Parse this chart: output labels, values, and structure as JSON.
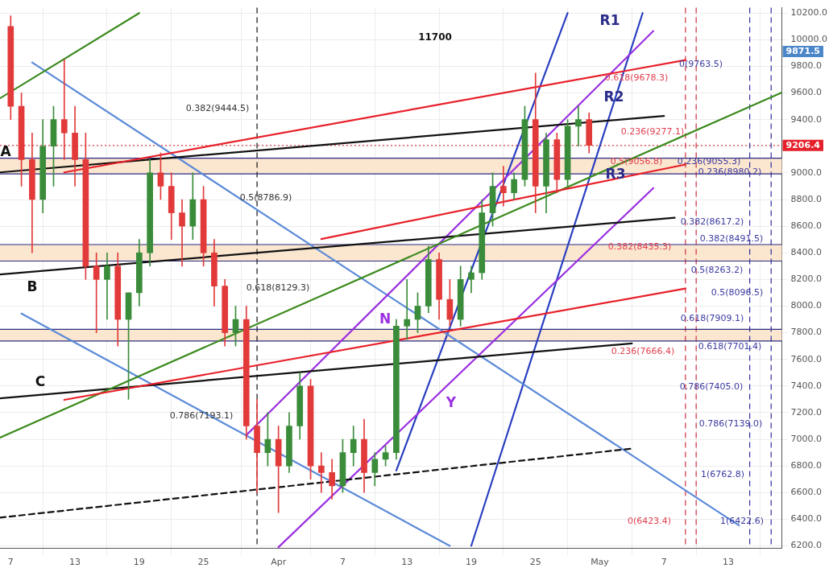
{
  "chart_data": {
    "type": "candlestick",
    "x": [
      "--03-07",
      "--03-08",
      "--03-09",
      "--03-10",
      "--03-11",
      "--03-12",
      "--03-13",
      "--03-14",
      "--03-15",
      "--03-16",
      "--03-17",
      "--03-18",
      "--03-19",
      "--03-20",
      "--03-21",
      "--03-22",
      "--03-23",
      "--03-24",
      "--03-25",
      "--03-26",
      "--03-27",
      "--03-28",
      "--03-29",
      "--03-30",
      "--03-31",
      "--04-01",
      "--04-02",
      "--04-03",
      "--04-04",
      "--04-05",
      "--04-06",
      "--04-07",
      "--04-08",
      "--04-09",
      "--04-10",
      "--04-11",
      "--04-12",
      "--04-13",
      "--04-14",
      "--04-15",
      "--04-16",
      "--04-17",
      "--04-18",
      "--04-19",
      "--04-20",
      "--04-21",
      "--04-22",
      "--04-23",
      "--04-24",
      "--04-25",
      "--04-26",
      "--04-27",
      "--04-28",
      "--04-29",
      "--04-30"
    ],
    "ohlc": [
      [
        10100,
        10180,
        9400,
        9500
      ],
      [
        9500,
        9600,
        8900,
        9100
      ],
      [
        9100,
        9300,
        8400,
        8800
      ],
      [
        8800,
        9400,
        8700,
        9200
      ],
      [
        9200,
        9500,
        8900,
        9400
      ],
      [
        9400,
        9850,
        9100,
        9300
      ],
      [
        9300,
        9500,
        8900,
        9100
      ],
      [
        9100,
        9300,
        8200,
        8300
      ],
      [
        8300,
        8400,
        7800,
        8200
      ],
      [
        8200,
        8400,
        7900,
        8300
      ],
      [
        8300,
        8400,
        7700,
        7900
      ],
      [
        7900,
        8100,
        7300,
        8100
      ],
      [
        8100,
        8500,
        8000,
        8400
      ],
      [
        8400,
        9100,
        8300,
        9000
      ],
      [
        9000,
        9150,
        8800,
        8900
      ],
      [
        8900,
        9000,
        8500,
        8700
      ],
      [
        8700,
        8800,
        8300,
        8600
      ],
      [
        8600,
        9000,
        8500,
        8800
      ],
      [
        8800,
        8900,
        8300,
        8400
      ],
      [
        8400,
        8500,
        8000,
        8150
      ],
      [
        8150,
        8200,
        7700,
        7800
      ],
      [
        7800,
        8000,
        7700,
        7900
      ],
      [
        7900,
        8000,
        7000,
        7100
      ],
      [
        7100,
        7300,
        6600,
        6900
      ],
      [
        6900,
        7200,
        6800,
        7000
      ],
      [
        7000,
        7100,
        6450,
        6800
      ],
      [
        6800,
        7200,
        6750,
        7100
      ],
      [
        7100,
        7500,
        7000,
        7400
      ],
      [
        7400,
        7450,
        6700,
        6800
      ],
      [
        6800,
        6900,
        6600,
        6750
      ],
      [
        6750,
        6850,
        6550,
        6650
      ],
      [
        6650,
        7000,
        6600,
        6900
      ],
      [
        6900,
        7100,
        6800,
        7000
      ],
      [
        7000,
        7150,
        6600,
        6750
      ],
      [
        6750,
        6900,
        6650,
        6850
      ],
      [
        6850,
        6950,
        6800,
        6900
      ],
      [
        6900,
        7900,
        6850,
        7850
      ],
      [
        7850,
        8200,
        7750,
        7900
      ],
      [
        7900,
        8100,
        7800,
        8000
      ],
      [
        8000,
        8450,
        7950,
        8350
      ],
      [
        8350,
        8400,
        7900,
        8050
      ],
      [
        8050,
        8200,
        7850,
        7900
      ],
      [
        7900,
        8300,
        7850,
        8200
      ],
      [
        8200,
        8300,
        8100,
        8250
      ],
      [
        8250,
        8800,
        8200,
        8700
      ],
      [
        8700,
        9000,
        8600,
        8900
      ],
      [
        8900,
        9050,
        8750,
        8850
      ],
      [
        8850,
        9000,
        8800,
        8950
      ],
      [
        8950,
        9500,
        8900,
        9400
      ],
      [
        9400,
        9750,
        8700,
        8900
      ],
      [
        8900,
        9300,
        8700,
        9250
      ],
      [
        9250,
        9300,
        8850,
        8950
      ],
      [
        8950,
        9400,
        8900,
        9350
      ],
      [
        9350,
        9500,
        9200,
        9400
      ],
      [
        9400,
        9450,
        9150,
        9206.4
      ]
    ],
    "colors": [
      "#e23a3a",
      "#e23a3a",
      "#e23a3a",
      "#3a8c3a",
      "#3a8c3a",
      "#e23a3a",
      "#e23a3a",
      "#e23a3a",
      "#e23a3a",
      "#3a8c3a",
      "#e23a3a",
      "#3a8c3a",
      "#3a8c3a",
      "#3a8c3a",
      "#e23a3a",
      "#e23a3a",
      "#e23a3a",
      "#3a8c3a",
      "#e23a3a",
      "#e23a3a",
      "#e23a3a",
      "#3a8c3a",
      "#e23a3a",
      "#e23a3a",
      "#3a8c3a",
      "#e23a3a",
      "#3a8c3a",
      "#3a8c3a",
      "#e23a3a",
      "#e23a3a",
      "#e23a3a",
      "#3a8c3a",
      "#3a8c3a",
      "#e23a3a",
      "#3a8c3a",
      "#3a8c3a",
      "#3a8c3a",
      "#3a8c3a",
      "#3a8c3a",
      "#3a8c3a",
      "#e23a3a",
      "#e23a3a",
      "#3a8c3a",
      "#3a8c3a",
      "#3a8c3a",
      "#3a8c3a",
      "#e23a3a",
      "#3a8c3a",
      "#3a8c3a",
      "#e23a3a",
      "#3a8c3a",
      "#e23a3a",
      "#3a8c3a",
      "#3a8c3a",
      "#e23a3a"
    ],
    "series": [
      {
        "type": "line",
        "color": "#e8202a",
        "line_style": "solid",
        "x": [
          "--03-12",
          "--05-09"
        ],
        "values": [
          9004,
          9847
        ]
      },
      {
        "type": "line",
        "color": "#e8202a",
        "line_style": "solid",
        "x": [
          "--04-05",
          "--05-09"
        ],
        "values": [
          8503,
          9063
        ]
      },
      {
        "type": "line",
        "color": "#e8202a",
        "line_style": "solid",
        "x": [
          "--03-12",
          "--05-09"
        ],
        "values": [
          7296,
          8132
        ]
      },
      {
        "type": "line",
        "color": "#3c8a1e",
        "line_style": "solid",
        "x": [
          "--03-06",
          "--03-19"
        ],
        "values": [
          9560,
          10200
        ]
      },
      {
        "type": "line",
        "color": "#3c8a1e",
        "line_style": "solid",
        "x": [
          "--03-06",
          "--05-18"
        ],
        "values": [
          7013,
          9604
        ]
      },
      {
        "type": "line",
        "color": "#111111",
        "line_style": "solid",
        "x": [
          "--03-06",
          "--05-07"
        ],
        "values": [
          9004,
          9428
        ]
      },
      {
        "type": "line",
        "color": "#111111",
        "line_style": "solid",
        "x": [
          "--03-06",
          "--05-08"
        ],
        "values": [
          8238,
          8663
        ]
      },
      {
        "type": "line",
        "color": "#111111",
        "line_style": "solid",
        "x": [
          "--03-06",
          "--05-04"
        ],
        "values": [
          7308,
          7720
        ]
      },
      {
        "type": "line",
        "color": "#111111",
        "line_style": "dashed",
        "x": [
          "--03-06",
          "--05-04"
        ],
        "values": [
          6412,
          6930
        ]
      },
      {
        "type": "line",
        "color": "#9b30e0",
        "line_style": "solid",
        "x": [
          "--04-01",
          "--05-06"
        ],
        "values": [
          6190,
          8886
        ]
      },
      {
        "type": "line",
        "color": "#9b30e0",
        "line_style": "solid",
        "x": [
          "--03-29",
          "--05-06"
        ],
        "values": [
          7031,
          10065
        ]
      },
      {
        "type": "line",
        "color": "#5b8ad8",
        "line_style": "solid",
        "x": [
          "--03-09",
          "--05-14"
        ],
        "values": [
          9829,
          6353
        ]
      },
      {
        "type": "line",
        "color": "#5b8ad8",
        "line_style": "solid",
        "x": [
          "--03-08",
          "--04-17"
        ],
        "values": [
          7944,
          6200
        ]
      },
      {
        "type": "line",
        "color": "#2a3fc0",
        "line_style": "solid",
        "x": [
          "--04-12",
          "--04-28"
        ],
        "values": [
          6766,
          10200
        ]
      },
      {
        "type": "line",
        "color": "#2a3fc0",
        "line_style": "solid",
        "x": [
          "--04-19",
          "--05-05"
        ],
        "values": [
          6200,
          10200
        ]
      }
    ],
    "xlim": [
      "--03-06",
      "--05-18"
    ],
    "xticks": [
      {
        "value": "--03-07",
        "label": "7"
      },
      {
        "value": "--03-13",
        "label": "13"
      },
      {
        "value": "--03-19",
        "label": "19"
      },
      {
        "value": "--03-25",
        "label": "25"
      },
      {
        "value": "--04-01",
        "label": "Apr"
      },
      {
        "value": "--04-07",
        "label": "7"
      },
      {
        "value": "--04-13",
        "label": "13"
      },
      {
        "value": "--04-19",
        "label": "19"
      },
      {
        "value": "--04-25",
        "label": "25"
      },
      {
        "value": "--05-01",
        "label": "May"
      },
      {
        "value": "--05-07",
        "label": "7"
      },
      {
        "value": "--05-13",
        "label": "13"
      }
    ],
    "ylim": [
      6180,
      10240
    ],
    "yticks": [
      {
        "value": 6200,
        "label": "6200.0"
      },
      {
        "value": 6400,
        "label": "6400.0"
      },
      {
        "value": 6600,
        "label": "6600.0"
      },
      {
        "value": 6800,
        "label": "6800.0"
      },
      {
        "value": 7000,
        "label": "7000.0"
      },
      {
        "value": 7200,
        "label": "7200.0"
      },
      {
        "value": 7400,
        "label": "7400.0"
      },
      {
        "value": 7600,
        "label": "7600.0"
      },
      {
        "value": 7800,
        "label": "7800.0"
      },
      {
        "value": 8000,
        "label": "8000.0"
      },
      {
        "value": 8200,
        "label": "8200.0"
      },
      {
        "value": 8400,
        "label": "8400.0"
      },
      {
        "value": 8600,
        "label": "8600.0"
      },
      {
        "value": 8800,
        "label": "8800.0"
      },
      {
        "value": 9000,
        "label": "9000.0"
      },
      {
        "value": 9200,
        "label": null
      },
      {
        "value": 9400,
        "label": "9400.0"
      },
      {
        "value": 9600,
        "label": "9600.0"
      },
      {
        "value": 9800,
        "label": "9800.0"
      },
      {
        "value": 10000,
        "label": "10000.0"
      },
      {
        "value": 10200,
        "label": "10200.0"
      }
    ],
    "grid": true,
    "bands": [
      {
        "axis": "y",
        "from": 8993,
        "to": 9110,
        "color": "#fbe6cf"
      },
      {
        "axis": "y",
        "from": 8338,
        "to": 8462,
        "color": "#fbe6cf"
      },
      {
        "axis": "y",
        "from": 7738,
        "to": 7826,
        "color": "#fbe6cf"
      }
    ],
    "ref_lines": [
      {
        "axis": "y",
        "value": 9206.4,
        "label": "9206.4",
        "color": "#e5202a",
        "line_style": "dotted"
      },
      {
        "axis": "x",
        "value": "--03-30",
        "color": "#111111",
        "line_style": "dashed"
      },
      {
        "axis": "x",
        "value": "--05-09",
        "color": "#d03040",
        "line_style": "dashed"
      },
      {
        "axis": "x",
        "value": "--05-10",
        "color": "#d03040",
        "line_style": "dashed"
      },
      {
        "axis": "x",
        "value": "--05-15",
        "color": "#3030a0",
        "line_style": "dashed"
      },
      {
        "axis": "x",
        "value": "--05-17",
        "color": "#3030a0",
        "line_style": "dashed"
      },
      {
        "axis": "y",
        "value": 9110,
        "color": "#2a2a80",
        "line_style": "solid"
      },
      {
        "axis": "y",
        "value": 8993,
        "color": "#2a2a80",
        "line_style": "solid"
      },
      {
        "axis": "y",
        "value": 8462,
        "color": "#2a2a80",
        "line_style": "solid"
      },
      {
        "axis": "y",
        "value": 8338,
        "color": "#2a2a80",
        "line_style": "solid"
      },
      {
        "axis": "y",
        "value": 7826,
        "color": "#2a2a80",
        "line_style": "solid"
      },
      {
        "axis": "y",
        "value": 7738,
        "color": "#2a2a80",
        "line_style": "solid"
      }
    ],
    "annotations": [
      "9871.5",
      "11700",
      "R1",
      "R2",
      "R3",
      "N",
      "Y",
      "A",
      "B",
      "C",
      "0.382(9444.5)",
      "0.5(8786.9)",
      "0.618(8129.3)",
      "0.786(7193.1)",
      "0(9763.5)",
      "0.618(9678.3)",
      "0.236(9277.1)",
      "0.5(9056.8)",
      "0.236(9055.3)",
      "0.236(8980.2)",
      "0.382(8617.2)",
      "0.382(8491.5)",
      "0.382(8435.3)",
      "0.5(8263.2)",
      "0.5(8096.5)",
      "0.618(7909.1)",
      "0.618(7701.4)",
      "0.236(7666.4)",
      "0.786(7405.0)",
      "0.786(7139.0)",
      "1(6762.8)",
      "0(6423.4)",
      "1(6422.6)"
    ]
  }
}
